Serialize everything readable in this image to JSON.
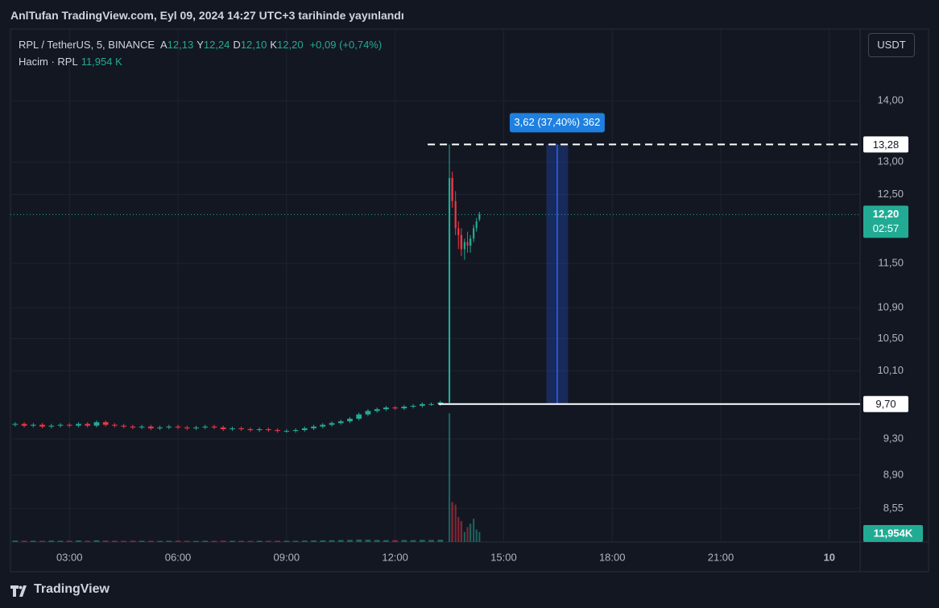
{
  "header": {
    "title": "AnlTufan TradingView.com, Eyl 09, 2024 14:27 UTC+3 tarihinde yayınlandı"
  },
  "legend": {
    "symbol": "RPL / TetherUS, 5, BINANCE",
    "ohlc": [
      {
        "key": "A",
        "value": "12,13"
      },
      {
        "key": "Y",
        "value": "12,24"
      },
      {
        "key": "D",
        "value": "12,10"
      },
      {
        "key": "K",
        "value": "12,20"
      }
    ],
    "change": "+0,09 (+0,74%)",
    "volume_name": "Hacim · RPL",
    "volume_value": "11,954 K"
  },
  "currency": "USDT",
  "footer": "TradingView",
  "chart_data": {
    "type": "candlestick",
    "log_scale": true,
    "grid": true,
    "up_color": "#22ab94",
    "down_color": "#f23645",
    "xlim": [
      1.37,
      24.85
    ],
    "xticks": [
      {
        "value": 3,
        "label": "03:00"
      },
      {
        "value": 6,
        "label": "06:00"
      },
      {
        "value": 9,
        "label": "09:00"
      },
      {
        "value": 12,
        "label": "12:00"
      },
      {
        "value": 15,
        "label": "15:00"
      },
      {
        "value": 18,
        "label": "18:00"
      },
      {
        "value": 21,
        "label": "21:00"
      },
      {
        "value": 24,
        "label": "10"
      }
    ],
    "ylim": [
      8.21,
      15.27
    ],
    "yticks": [
      {
        "value": 14,
        "label": "14,00"
      },
      {
        "value": 13,
        "label": "13,00"
      },
      {
        "value": 12.5,
        "label": "12,50"
      },
      {
        "value": 11.5,
        "label": "11,50"
      },
      {
        "value": 10.9,
        "label": "10,90"
      },
      {
        "value": 10.5,
        "label": "10,50"
      },
      {
        "value": 10.1,
        "label": "10,10"
      },
      {
        "value": 9.3,
        "label": "9,30"
      },
      {
        "value": 8.9,
        "label": "8,90"
      },
      {
        "value": 8.55,
        "label": "8,55"
      }
    ],
    "x": [
      1.5,
      1.75,
      2,
      2.25,
      2.5,
      2.75,
      3,
      3.25,
      3.5,
      3.75,
      4,
      4.25,
      4.5,
      4.75,
      5,
      5.25,
      5.5,
      5.75,
      6,
      6.25,
      6.5,
      6.75,
      7,
      7.25,
      7.5,
      7.75,
      8,
      8.25,
      8.5,
      8.75,
      9,
      9.25,
      9.5,
      9.75,
      10,
      10.25,
      10.5,
      10.75,
      11,
      11.25,
      11.5,
      11.75,
      12,
      12.25,
      12.5,
      12.75,
      13,
      13.25,
      13.5,
      13.58,
      13.67,
      13.75,
      13.83,
      13.92,
      14,
      14.08,
      14.17,
      14.25,
      14.33
    ],
    "open": [
      9.46,
      9.47,
      9.45,
      9.46,
      9.44,
      9.45,
      9.46,
      9.45,
      9.47,
      9.45,
      9.49,
      9.46,
      9.45,
      9.44,
      9.43,
      9.44,
      9.42,
      9.43,
      9.44,
      9.43,
      9.42,
      9.43,
      9.44,
      9.43,
      9.41,
      9.42,
      9.41,
      9.4,
      9.41,
      9.4,
      9.39,
      9.39,
      9.4,
      9.42,
      9.44,
      9.46,
      9.48,
      9.5,
      9.53,
      9.58,
      9.62,
      9.64,
      9.66,
      9.65,
      9.67,
      9.68,
      9.7,
      9.7,
      9.72,
      12.75,
      12.4,
      12.0,
      11.9,
      11.7,
      11.8,
      11.75,
      11.85,
      12.0,
      12.13
    ],
    "high": [
      9.49,
      9.49,
      9.48,
      9.48,
      9.47,
      9.48,
      9.48,
      9.49,
      9.49,
      9.51,
      9.51,
      9.48,
      9.47,
      9.46,
      9.46,
      9.46,
      9.45,
      9.46,
      9.46,
      9.45,
      9.45,
      9.46,
      9.46,
      9.45,
      9.44,
      9.44,
      9.43,
      9.43,
      9.43,
      9.42,
      9.41,
      9.42,
      9.44,
      9.46,
      9.48,
      9.5,
      9.52,
      9.55,
      9.6,
      9.64,
      9.66,
      9.68,
      9.68,
      9.69,
      9.7,
      9.72,
      9.72,
      9.74,
      13.28,
      12.85,
      12.55,
      12.1,
      12.0,
      11.85,
      11.95,
      11.9,
      12.05,
      12.15,
      12.24
    ],
    "low": [
      9.44,
      9.43,
      9.43,
      9.42,
      9.42,
      9.43,
      9.43,
      9.43,
      9.43,
      9.43,
      9.44,
      9.43,
      9.42,
      9.41,
      9.41,
      9.4,
      9.4,
      9.41,
      9.41,
      9.4,
      9.4,
      9.41,
      9.41,
      9.39,
      9.39,
      9.39,
      9.38,
      9.38,
      9.38,
      9.37,
      9.37,
      9.37,
      9.38,
      9.4,
      9.42,
      9.44,
      9.46,
      9.48,
      9.51,
      9.56,
      9.6,
      9.62,
      9.63,
      9.63,
      9.65,
      9.66,
      9.68,
      9.68,
      9.7,
      12.3,
      11.9,
      11.7,
      11.6,
      11.55,
      11.65,
      11.65,
      11.8,
      11.95,
      12.1
    ],
    "close": [
      9.47,
      9.45,
      9.46,
      9.44,
      9.45,
      9.46,
      9.45,
      9.47,
      9.45,
      9.49,
      9.46,
      9.45,
      9.44,
      9.43,
      9.44,
      9.42,
      9.43,
      9.44,
      9.43,
      9.42,
      9.43,
      9.44,
      9.43,
      9.41,
      9.42,
      9.41,
      9.4,
      9.41,
      9.4,
      9.39,
      9.39,
      9.4,
      9.42,
      9.44,
      9.46,
      9.48,
      9.5,
      9.53,
      9.58,
      9.62,
      9.64,
      9.66,
      9.65,
      9.67,
      9.68,
      9.7,
      9.7,
      9.72,
      12.75,
      12.4,
      12.0,
      11.9,
      11.7,
      11.8,
      11.75,
      11.85,
      12.0,
      12.1,
      12.2
    ],
    "volume": [
      1800,
      1500,
      1600,
      1400,
      1700,
      1500,
      1600,
      1900,
      1500,
      2100,
      1700,
      1500,
      1400,
      1600,
      1500,
      1400,
      1300,
      1500,
      1600,
      1400,
      1300,
      1500,
      1400,
      1600,
      1500,
      1400,
      1300,
      1500,
      1400,
      1600,
      1500,
      1400,
      1700,
      1900,
      2000,
      2200,
      2400,
      2600,
      3000,
      2800,
      2500,
      2300,
      2200,
      2400,
      2300,
      2600,
      2500,
      2800,
      155000,
      48000,
      45000,
      30000,
      25000,
      12000,
      18000,
      22000,
      28000,
      15000,
      11954
    ],
    "volume_ylim": [
      0,
      160000
    ],
    "price_lines": [
      {
        "value": 13.28,
        "label": "13,28",
        "style": "dashed",
        "start_x": 12.9
      },
      {
        "value": 9.7,
        "label": "9,70",
        "style": "solid",
        "start_x": 13.2
      }
    ],
    "measure": {
      "x": [
        16.18,
        16.78
      ],
      "label": "3,62 (37,40%) 362"
    },
    "last": {
      "value": 12.2,
      "label": "12,20",
      "countdown": "02:57"
    },
    "volume_label": "11,954K"
  }
}
